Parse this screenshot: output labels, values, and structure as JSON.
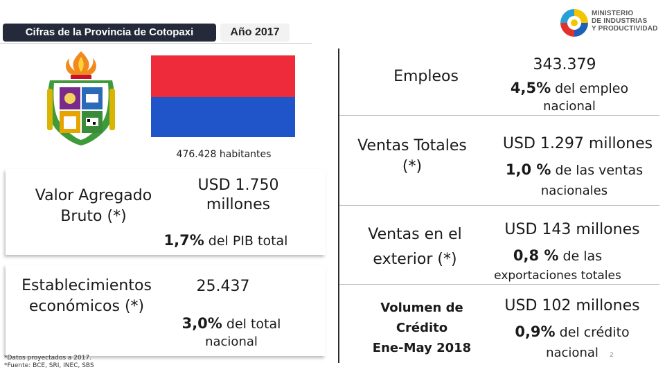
{
  "header": {
    "title_tag": "Cifras de la Provincia de Cotopaxi",
    "year_tag": "Año 2017",
    "logo_line1": "MINISTERIO",
    "logo_line2": "DE INDUSTRIAS",
    "logo_line3": "Y PRODUCTIVIDAD"
  },
  "flag": {
    "top_color": "#ee2b3a",
    "bottom_color": "#1f55c8"
  },
  "population": "476.428 habitantes",
  "vab": {
    "label_1": "Valor Agregado",
    "label_2": "Bruto (*)",
    "value_1": "USD 1.750",
    "value_2": "millones",
    "pct": "1,7%",
    "pct_text": " del PIB total"
  },
  "establishments": {
    "label_1": "Establecimientos",
    "label_2": "económicos (*)",
    "value": "25.437",
    "pct": "3,0%",
    "pct_text": " del total",
    "pct_text_2": "nacional"
  },
  "footnotes": {
    "line1": "*Datos proyectados a 2017.",
    "line2": "*Fuente: BCE, SRI, INEC, SBS"
  },
  "right_rows": [
    {
      "label_1": "Empleos",
      "label_2": "",
      "value": "343.379",
      "pct": "4,5%",
      "pct_text": " del empleo",
      "pct_text_2": "nacional"
    },
    {
      "label_1": "Ventas Totales",
      "label_2": "(*)",
      "value": "USD 1.297 millones",
      "pct": "1,0 %",
      "pct_text": " de las ventas",
      "pct_text_2": "nacionales"
    },
    {
      "label_1": "Ventas en el",
      "label_2": "exterior (*)",
      "value": "USD 143 millones",
      "pct": "0,8 %",
      "pct_text": " de las",
      "pct_text_2": "exportaciones totales"
    },
    {
      "label_1": "Volumen de",
      "label_2": "Crédito",
      "label_3": "Ene-May 2018",
      "value": "USD 102 millones",
      "pct": "0,9%",
      "pct_text": " del crédito",
      "pct_text_2": "nacional"
    }
  ],
  "page_number": "2",
  "colors": {
    "header_dark": "#252a3a",
    "text": "#1a1a1a"
  },
  "icons": {
    "coat_of_arms": "coat-of-arms-icon",
    "ministry_logo": "ministry-logo-icon"
  }
}
